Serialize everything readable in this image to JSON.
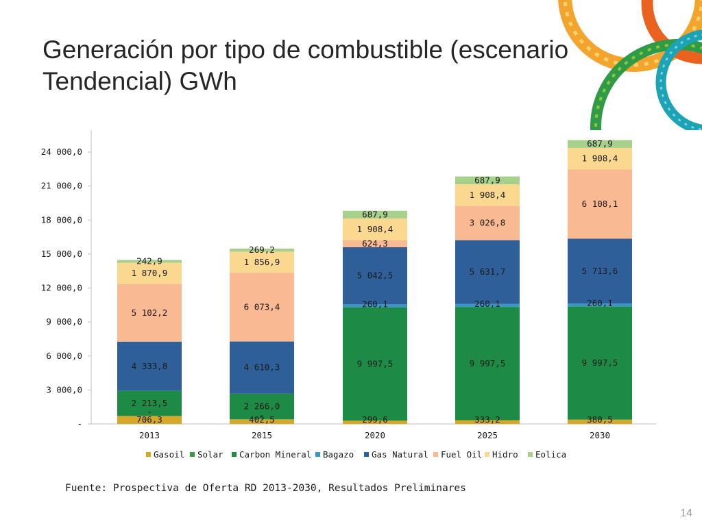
{
  "slide": {
    "title": "Generación por tipo de combustible (escenario Tendencial) GWh",
    "source": "Fuente: Prospectiva de Oferta RD 2013-2030, Resultados Preliminares",
    "page_number": "14"
  },
  "colors": {
    "Gasoil": "#d4a92a",
    "Solar": "#3c9a44",
    "Carbon Mineral": "#1d8a45",
    "Bagazo": "#3a96c4",
    "Gas Natural": "#2f5f98",
    "Fuel Oil": "#f8b993",
    "Hidro": "#fad890",
    "Eolica": "#a8d08d"
  },
  "chart_data": {
    "type": "bar",
    "stacked": true,
    "title": "",
    "xlabel": "",
    "ylabel": "",
    "categories": [
      "2013",
      "2015",
      "2020",
      "2025",
      "2030"
    ],
    "ylim": [
      0,
      26000
    ],
    "y_ticks": [
      0,
      3000,
      6000,
      9000,
      12000,
      15000,
      18000,
      21000,
      24000
    ],
    "y_tick_labels": [
      "-",
      "3 000,0",
      "6 000,0",
      "9 000,0",
      "12 000,0",
      "15 000,0",
      "18 000,0",
      "21 000,0",
      "24 000,0"
    ],
    "legend_position": "bottom",
    "series": [
      {
        "name": "Gasoil",
        "values": [
          706.3,
          402.5,
          299.6,
          333.2,
          380.5
        ],
        "labels": [
          "706,3",
          "402,5",
          "299,6",
          "333,2",
          "380,5"
        ]
      },
      {
        "name": "Solar",
        "values": [
          0,
          0,
          0,
          0,
          0
        ],
        "labels": [
          "-",
          "-",
          "",
          "",
          ""
        ]
      },
      {
        "name": "Carbon Mineral",
        "values": [
          2213.5,
          2266.0,
          9997.5,
          9997.5,
          9997.5
        ],
        "labels": [
          "2 213,5",
          "2 266,0",
          "9 997,5",
          "9 997,5",
          "9 997,5"
        ]
      },
      {
        "name": "Bagazo",
        "values": [
          0,
          0,
          260.1,
          260.1,
          260.1
        ],
        "labels": [
          "",
          "",
          "260,1",
          "260,1",
          "260,1"
        ]
      },
      {
        "name": "Gas Natural",
        "values": [
          4333.8,
          4610.3,
          5042.5,
          5631.7,
          5713.6
        ],
        "labels": [
          "4 333,8",
          "4 610,3",
          "5 042,5",
          "5 631,7",
          "5 713,6"
        ]
      },
      {
        "name": "Fuel Oil",
        "values": [
          5102.2,
          6073.4,
          624.3,
          3026.8,
          6108.1
        ],
        "labels": [
          "5 102,2",
          "6 073,4",
          "624,3",
          "3 026,8",
          "6 108,1"
        ]
      },
      {
        "name": "Hidro",
        "values": [
          1870.9,
          1856.9,
          1908.4,
          1908.4,
          1908.4
        ],
        "labels": [
          "1 870,9",
          "1 856,9",
          "1 908,4",
          "1 908,4",
          "1 908,4"
        ]
      },
      {
        "name": "Eolica",
        "values": [
          242.9,
          269.2,
          687.9,
          687.9,
          687.9
        ],
        "labels": [
          "242,9",
          "269,2",
          "687,9",
          "687,9",
          "687,9"
        ]
      }
    ]
  }
}
